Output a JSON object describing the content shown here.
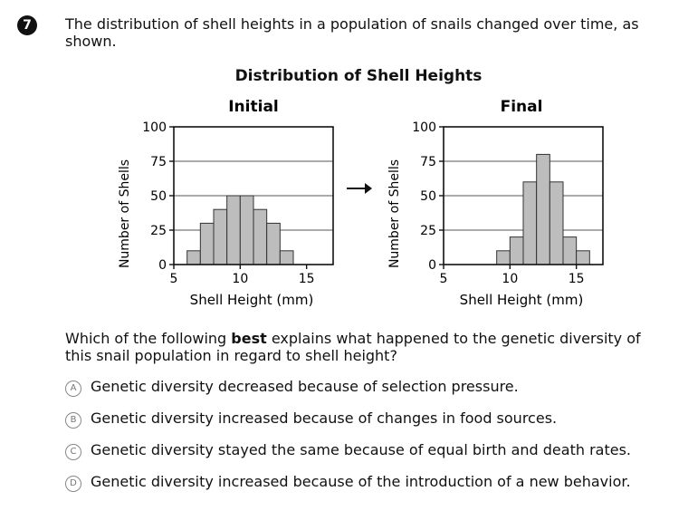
{
  "question": {
    "number": "7",
    "stem": "The distribution of shell heights in a population of snails changed over time, as shown.",
    "prompt_before": "Which of the following ",
    "prompt_bold": "best",
    "prompt_after": " explains what happened to the genetic diversity of this snail population in regard to shell height?",
    "choices": [
      {
        "letter": "A",
        "text": "Genetic diversity decreased because of selection pressure."
      },
      {
        "letter": "B",
        "text": "Genetic diversity increased because of changes in food sources."
      },
      {
        "letter": "C",
        "text": "Genetic diversity stayed the same because of equal birth and death rates."
      },
      {
        "letter": "D",
        "text": "Genetic diversity increased because of the introduction of a new behavior."
      }
    ]
  },
  "figure_title": "Distribution of Shell Heights",
  "chart_data": [
    {
      "type": "bar",
      "title": "Initial",
      "xlabel": "Shell Height (mm)",
      "ylabel": "Number of Shells",
      "xlim": [
        5,
        17
      ],
      "ylim": [
        0,
        100
      ],
      "xticks": [
        5,
        10,
        15
      ],
      "yticks": [
        0,
        25,
        50,
        75,
        100
      ],
      "bins": [
        {
          "x0": 6,
          "x1": 7,
          "value": 10
        },
        {
          "x0": 7,
          "x1": 8,
          "value": 30
        },
        {
          "x0": 8,
          "x1": 9,
          "value": 40
        },
        {
          "x0": 9,
          "x1": 10,
          "value": 50
        },
        {
          "x0": 10,
          "x1": 11,
          "value": 50
        },
        {
          "x0": 11,
          "x1": 12,
          "value": 40
        },
        {
          "x0": 12,
          "x1": 13,
          "value": 30
        },
        {
          "x0": 13,
          "x1": 14,
          "value": 10
        }
      ],
      "grid": true
    },
    {
      "type": "bar",
      "title": "Final",
      "xlabel": "Shell Height (mm)",
      "ylabel": "Number of Shells",
      "xlim": [
        5,
        17
      ],
      "ylim": [
        0,
        100
      ],
      "xticks": [
        5,
        10,
        15
      ],
      "yticks": [
        0,
        25,
        50,
        75,
        100
      ],
      "bins": [
        {
          "x0": 9,
          "x1": 10,
          "value": 10
        },
        {
          "x0": 10,
          "x1": 11,
          "value": 20
        },
        {
          "x0": 11,
          "x1": 12,
          "value": 60
        },
        {
          "x0": 12,
          "x1": 13,
          "value": 80
        },
        {
          "x0": 13,
          "x1": 14,
          "value": 60
        },
        {
          "x0": 14,
          "x1": 15,
          "value": 20
        },
        {
          "x0": 15,
          "x1": 16,
          "value": 10
        }
      ],
      "grid": true
    }
  ],
  "colors": {
    "bar_fill": "#bdbdbd",
    "bar_stroke": "#333333",
    "grid": "#555555"
  }
}
